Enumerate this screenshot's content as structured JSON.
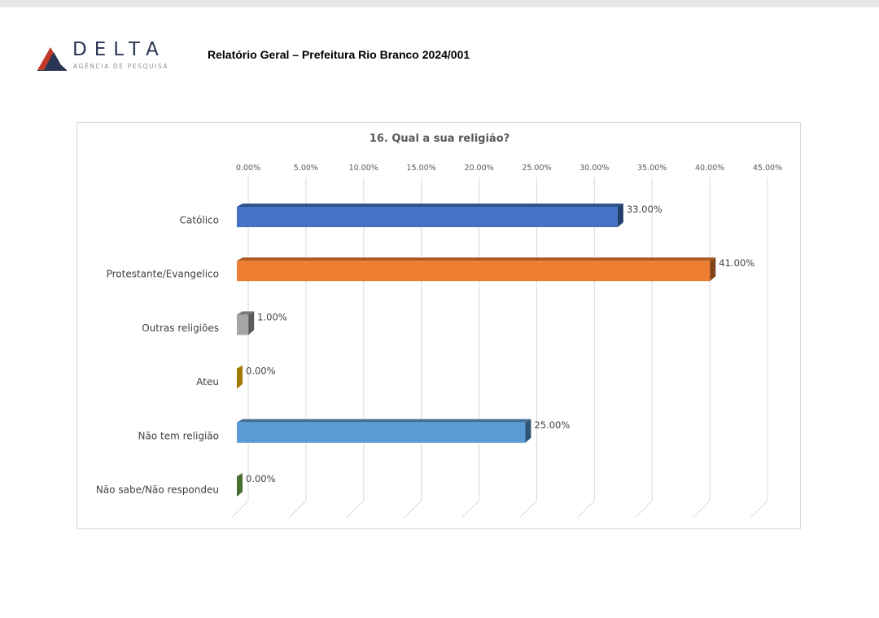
{
  "header": {
    "logo_word": "DELTA",
    "logo_sub": "AGÊNCIA DE PESQUISA",
    "report_title": "Relatório Geral – Prefeitura Rio Branco 2024/001"
  },
  "chart_data": {
    "type": "bar",
    "orientation": "horizontal",
    "style": "3d",
    "title": "16. Qual a sua religião?",
    "xlabel": "",
    "ylabel": "",
    "xlim": [
      0,
      45
    ],
    "x_ticks": [
      0,
      5,
      10,
      15,
      20,
      25,
      30,
      35,
      40,
      45
    ],
    "x_tick_labels": [
      "0.00%",
      "5.00%",
      "10.00%",
      "15.00%",
      "20.00%",
      "25.00%",
      "30.00%",
      "35.00%",
      "40.00%",
      "45.00%"
    ],
    "x_axis_position": "top",
    "grid": true,
    "legend": "none",
    "categories": [
      "Católico",
      "Protestante/Evangelico",
      "Outras religiões",
      "Ateu",
      "Não tem religião",
      "Não sabe/Não respondeu"
    ],
    "values": [
      33,
      41,
      1,
      0,
      25,
      0
    ],
    "data_labels": [
      "33.00%",
      "41.00%",
      "1.00%",
      "0.00%",
      "25.00%",
      "0.00%"
    ],
    "colors": [
      "#4472c4",
      "#ed7d31",
      "#a5a5a5",
      "#bf8f00",
      "#5b9bd5",
      "#548235"
    ]
  }
}
